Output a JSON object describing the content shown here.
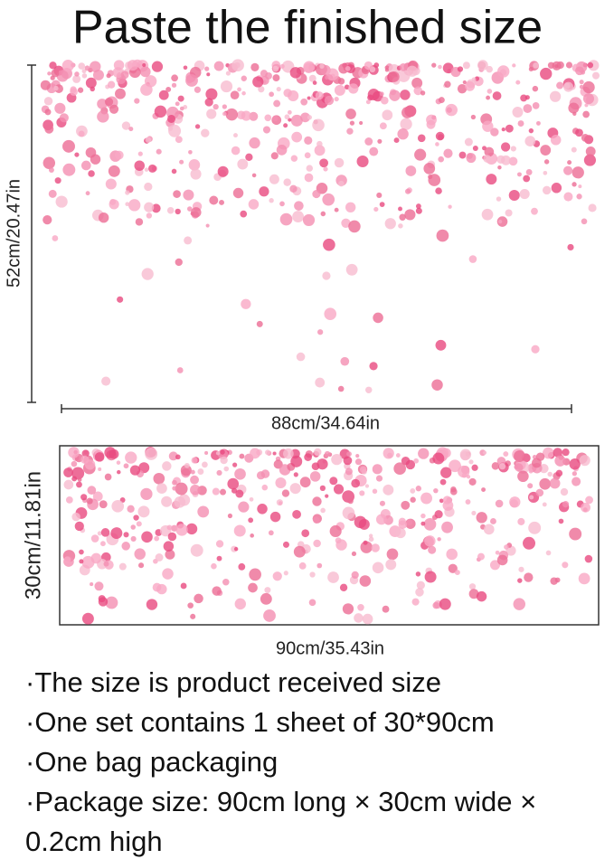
{
  "header": {
    "title": "Paste the finished size"
  },
  "top_image": {
    "height_label": "52cm/20.47in",
    "width_label": "88cm/34.64in"
  },
  "bottom_image": {
    "height_label": "30cm/11.81in",
    "width_label": "90cm/35.43in"
  },
  "notes": [
    "·The size is product received size",
    "·One set contains 1 sheet of 30*90cm",
    "·One bag packaging",
    "·Package size: 90cm long × 30cm wide × 0.2cm high"
  ]
}
